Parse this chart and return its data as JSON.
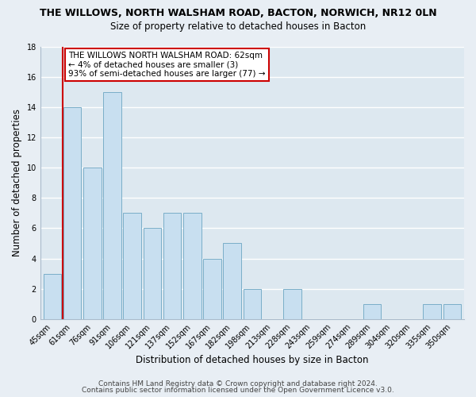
{
  "title": "THE WILLOWS, NORTH WALSHAM ROAD, BACTON, NORWICH, NR12 0LN",
  "subtitle": "Size of property relative to detached houses in Bacton",
  "xlabel": "Distribution of detached houses by size in Bacton",
  "ylabel": "Number of detached properties",
  "bar_labels": [
    "45sqm",
    "61sqm",
    "76sqm",
    "91sqm",
    "106sqm",
    "121sqm",
    "137sqm",
    "152sqm",
    "167sqm",
    "182sqm",
    "198sqm",
    "213sqm",
    "228sqm",
    "243sqm",
    "259sqm",
    "274sqm",
    "289sqm",
    "304sqm",
    "320sqm",
    "335sqm",
    "350sqm"
  ],
  "bar_values": [
    3,
    14,
    10,
    15,
    7,
    6,
    7,
    7,
    4,
    5,
    2,
    0,
    2,
    0,
    0,
    0,
    1,
    0,
    0,
    1,
    1
  ],
  "bar_color": "#c8dff0",
  "bar_edge_color": "#7aaec8",
  "vline_x": 1,
  "vline_color": "#cc0000",
  "annotation_text": "THE WILLOWS NORTH WALSHAM ROAD: 62sqm\n← 4% of detached houses are smaller (3)\n93% of semi-detached houses are larger (77) →",
  "annotation_box_color": "white",
  "annotation_box_edgecolor": "#cc0000",
  "ylim": [
    0,
    18
  ],
  "yticks": [
    0,
    2,
    4,
    6,
    8,
    10,
    12,
    14,
    16,
    18
  ],
  "footer1": "Contains HM Land Registry data © Crown copyright and database right 2024.",
  "footer2": "Contains public sector information licensed under the Open Government Licence v3.0.",
  "background_color": "#e8eef4",
  "plot_bg_color": "#dde8f0",
  "grid_color": "#ffffff",
  "title_fontsize": 9,
  "subtitle_fontsize": 8.5,
  "tick_fontsize": 7,
  "label_fontsize": 8.5,
  "footer_fontsize": 6.5,
  "annotation_fontsize": 7.5
}
